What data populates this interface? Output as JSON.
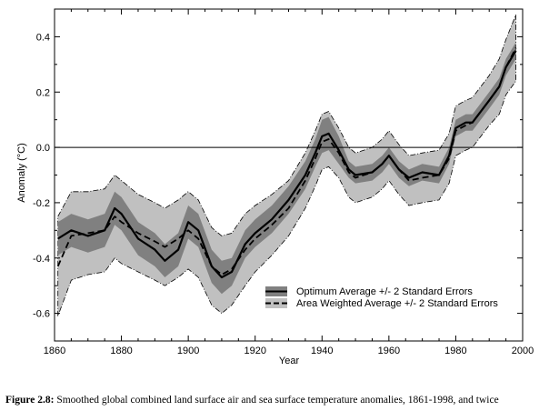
{
  "caption": {
    "label": "Figure 2.8:",
    "text": "Smoothed global combined land surface air and sea surface temperature anomalies, 1861-1998, and twice"
  },
  "chart_data": {
    "type": "line",
    "xlabel": "Year",
    "ylabel": "Anomaly (°C)",
    "xlim": [
      1860,
      2000
    ],
    "ylim": [
      -0.7,
      0.5
    ],
    "xticks": [
      1860,
      1880,
      1900,
      1920,
      1940,
      1960,
      1980,
      2000
    ],
    "yticks": [
      -0.6,
      -0.4,
      -0.2,
      0.0,
      0.2,
      0.4
    ],
    "ytick_labels": [
      "-0.6",
      "-0.4",
      "-0.2",
      "0.0",
      "0.2",
      "0.4"
    ],
    "zero_line": true,
    "legend_position": "bottom-right",
    "colors": {
      "optimum_band": "#808080",
      "weighted_band": "#c0c0c0",
      "line": "#000000"
    },
    "x": [
      1861,
      1865,
      1870,
      1875,
      1878,
      1880,
      1885,
      1890,
      1893,
      1897,
      1900,
      1903,
      1907,
      1910,
      1913,
      1917,
      1920,
      1925,
      1930,
      1935,
      1938,
      1940,
      1942,
      1945,
      1948,
      1950,
      1955,
      1958,
      1960,
      1963,
      1966,
      1970,
      1975,
      1978,
      1980,
      1983,
      1985,
      1990,
      1993,
      1995,
      1998
    ],
    "series": [
      {
        "name": "Optimum Average +/- 2 Standard Errors",
        "style": "solid",
        "values": [
          -0.33,
          -0.3,
          -0.32,
          -0.3,
          -0.22,
          -0.24,
          -0.33,
          -0.37,
          -0.41,
          -0.37,
          -0.27,
          -0.3,
          -0.43,
          -0.47,
          -0.45,
          -0.35,
          -0.31,
          -0.26,
          -0.19,
          -0.1,
          -0.02,
          0.04,
          0.05,
          -0.01,
          -0.08,
          -0.1,
          -0.09,
          -0.06,
          -0.03,
          -0.08,
          -0.11,
          -0.09,
          -0.1,
          -0.03,
          0.07,
          0.09,
          0.09,
          0.17,
          0.22,
          0.29,
          0.35
        ],
        "band": [
          0.06,
          0.06,
          0.06,
          0.06,
          0.06,
          0.06,
          0.06,
          0.06,
          0.06,
          0.06,
          0.06,
          0.06,
          0.06,
          0.06,
          0.05,
          0.05,
          0.05,
          0.05,
          0.05,
          0.05,
          0.05,
          0.06,
          0.06,
          0.05,
          0.03,
          0.03,
          0.03,
          0.03,
          0.03,
          0.03,
          0.03,
          0.03,
          0.03,
          0.03,
          0.03,
          0.03,
          0.03,
          0.03,
          0.03,
          0.03,
          0.03
        ]
      },
      {
        "name": "Area Weighted Average +/- 2 Standard Errors",
        "style": "dashed",
        "values": [
          -0.43,
          -0.32,
          -0.31,
          -0.3,
          -0.25,
          -0.27,
          -0.31,
          -0.34,
          -0.36,
          -0.33,
          -0.3,
          -0.33,
          -0.43,
          -0.46,
          -0.44,
          -0.37,
          -0.33,
          -0.28,
          -0.22,
          -0.12,
          -0.04,
          0.02,
          0.03,
          -0.02,
          -0.09,
          -0.11,
          -0.09,
          -0.06,
          -0.03,
          -0.08,
          -0.12,
          -0.11,
          -0.1,
          -0.04,
          0.06,
          0.08,
          0.09,
          0.17,
          0.22,
          0.29,
          0.36
        ],
        "band": [
          0.18,
          0.16,
          0.15,
          0.15,
          0.15,
          0.15,
          0.14,
          0.14,
          0.14,
          0.14,
          0.14,
          0.14,
          0.14,
          0.14,
          0.13,
          0.13,
          0.12,
          0.11,
          0.1,
          0.1,
          0.1,
          0.1,
          0.1,
          0.09,
          0.09,
          0.09,
          0.09,
          0.09,
          0.09,
          0.09,
          0.09,
          0.09,
          0.09,
          0.09,
          0.09,
          0.09,
          0.09,
          0.09,
          0.1,
          0.1,
          0.12
        ]
      }
    ]
  }
}
